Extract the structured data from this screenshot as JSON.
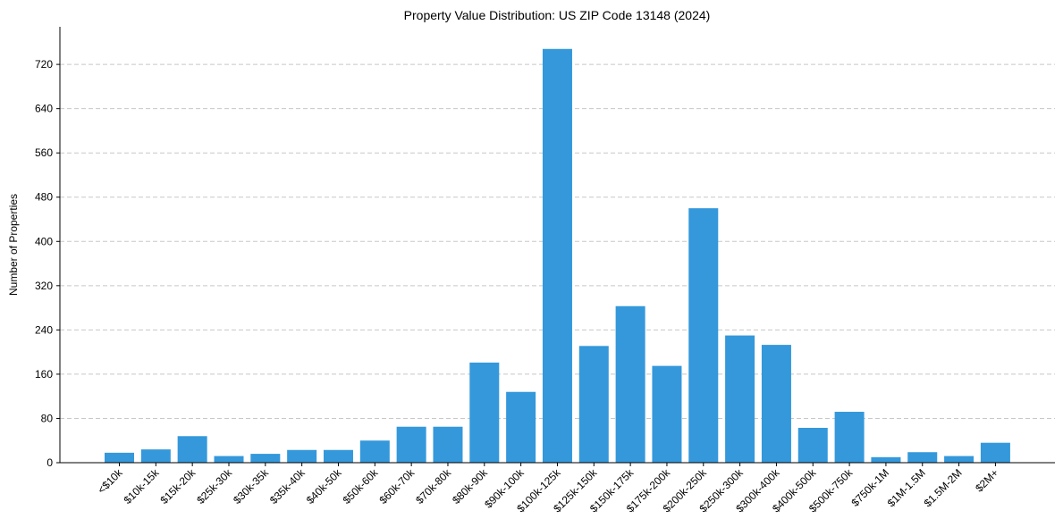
{
  "chart_data": {
    "type": "bar",
    "title": "Property Value Distribution: US ZIP Code 13148 (2024)",
    "xlabel": "",
    "ylabel": "Number of Properties",
    "categories": [
      "<$10k",
      "$10k-15k",
      "$15k-20k",
      "$25k-30k",
      "$30k-35k",
      "$35k-40k",
      "$40k-50k",
      "$50k-60k",
      "$60k-70k",
      "$70k-80k",
      "$80k-90k",
      "$90k-100k",
      "$100k-125k",
      "$125k-150k",
      "$150k-175k",
      "$175k-200k",
      "$200k-250k",
      "$250k-300k",
      "$300k-400k",
      "$400k-500k",
      "$500k-750k",
      "$750k-1M",
      "$1M-1.5M",
      "$1.5M-2M",
      "$2M+"
    ],
    "values": [
      18,
      24,
      48,
      12,
      16,
      23,
      23,
      40,
      65,
      65,
      181,
      128,
      748,
      211,
      283,
      175,
      460,
      230,
      213,
      63,
      92,
      10,
      19,
      12,
      36
    ],
    "ylim": [
      0,
      788
    ],
    "yticks": [
      0,
      80,
      160,
      240,
      320,
      400,
      480,
      560,
      640,
      720
    ],
    "grid": true,
    "color": "#3498db"
  }
}
